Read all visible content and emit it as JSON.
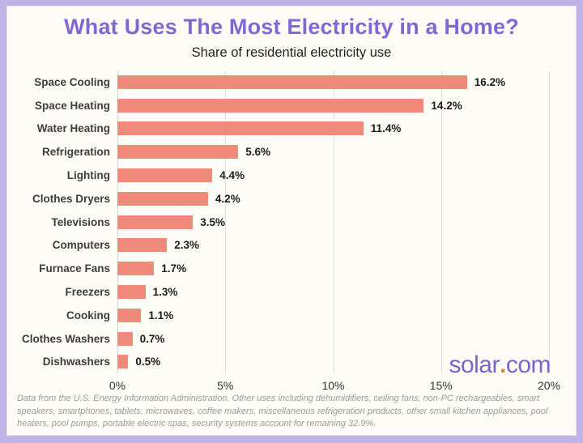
{
  "title": "What Uses The Most Electricity in a Home?",
  "subtitle": "Share of residential electricity use",
  "logo": {
    "name": "solar",
    "dot": ".",
    "tld": "com"
  },
  "footnote": "Data from the U.S. Energy Information Administration. Other uses including dehumidifiers, ceiling fans, non-PC rechargeables, smart speakers, smartphones, tablets, microwaves, coffee makers, miscellaneous refrigeration products, other small kitchen appliances, pool heaters, pool pumps, portable electric spas, security systems account for remaining 32.9%.",
  "colors": {
    "frame": "#bfb3e8",
    "paper": "#fdfcf6",
    "title": "#8266d4",
    "bar": "#f08a7a",
    "grid": "#e2e0dc",
    "logo": "#7b63cc",
    "logo_dot": "#d08a3e"
  },
  "chart_data": {
    "type": "bar",
    "orientation": "horizontal",
    "title": "What Uses The Most Electricity in a Home?",
    "subtitle": "Share of residential electricity use",
    "categories": [
      "Space Cooling",
      "Space Heating",
      "Water Heating",
      "Refrigeration",
      "Lighting",
      "Clothes Dryers",
      "Televisions",
      "Computers",
      "Furnace Fans",
      "Freezers",
      "Cooking",
      "Clothes Washers",
      "Dishwashers"
    ],
    "values": [
      16.2,
      14.2,
      11.4,
      5.6,
      4.4,
      4.2,
      3.5,
      2.3,
      1.7,
      1.3,
      1.1,
      0.7,
      0.5
    ],
    "value_labels": [
      "16.2%",
      "14.2%",
      "11.4%",
      "5.6%",
      "4.4%",
      "4.2%",
      "3.5%",
      "2.3%",
      "1.7%",
      "1.3%",
      "1.1%",
      "0.7%",
      "0.5%"
    ],
    "xlabel": "",
    "ylabel": "",
    "xlim": [
      0,
      20
    ],
    "xticks": [
      "0%",
      "5%",
      "10%",
      "15%",
      "20%"
    ],
    "grid": "vertical-only",
    "legend": "none"
  }
}
